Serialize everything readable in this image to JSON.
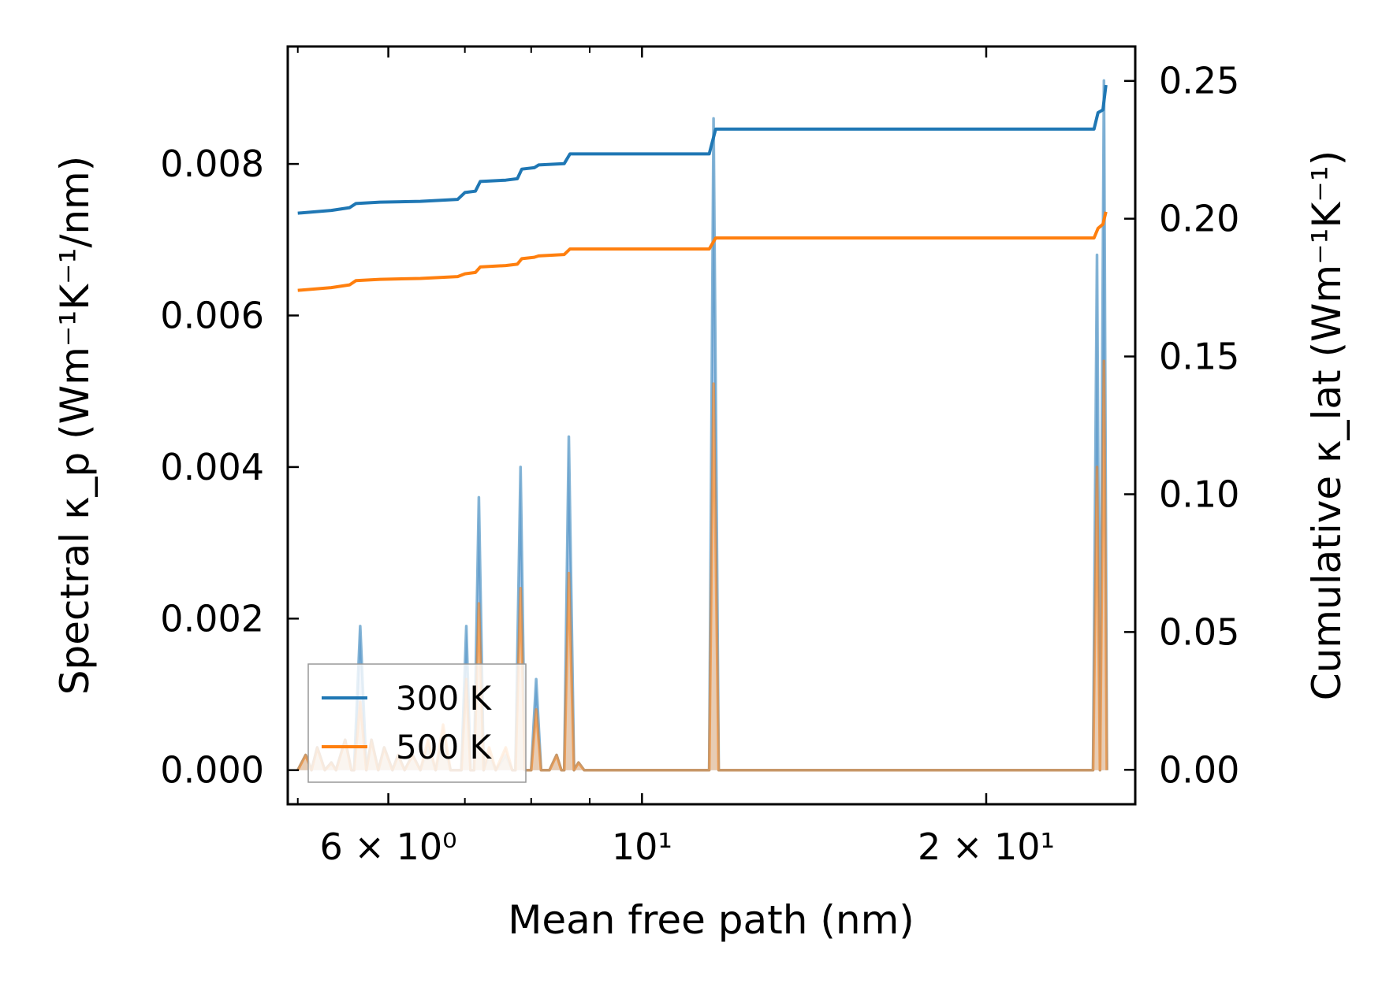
{
  "chart_data": {
    "type": "line",
    "xscale": "log",
    "xlabel": "Mean free path (nm)",
    "ylabel_left": "Spectral κ_p (Wm⁻¹K⁻¹/nm)",
    "ylabel_right": "Cumulative κ_lat (Wm⁻¹K⁻¹)",
    "xlim": [
      4.9,
      27.0
    ],
    "ylim_left": [
      -0.00045,
      0.00955
    ],
    "ylim_right": [
      -0.0125,
      0.2625
    ],
    "xticks": [
      {
        "value": 6,
        "label": "6 × 10⁰"
      },
      {
        "value": 10,
        "label": "10¹"
      },
      {
        "value": 20,
        "label": "2 × 10¹"
      }
    ],
    "xminor": [
      5,
      7,
      8,
      9,
      30
    ],
    "yticks_left": [
      {
        "value": 0.0,
        "label": "0.000"
      },
      {
        "value": 0.002,
        "label": "0.002"
      },
      {
        "value": 0.004,
        "label": "0.004"
      },
      {
        "value": 0.006,
        "label": "0.006"
      },
      {
        "value": 0.008,
        "label": "0.008"
      }
    ],
    "yticks_right": [
      {
        "value": 0.0,
        "label": "0.00"
      },
      {
        "value": 0.05,
        "label": "0.05"
      },
      {
        "value": 0.1,
        "label": "0.10"
      },
      {
        "value": 0.15,
        "label": "0.15"
      },
      {
        "value": 0.2,
        "label": "0.20"
      },
      {
        "value": 0.25,
        "label": "0.25"
      }
    ],
    "legend": {
      "position": "lower-left",
      "entries": [
        "300 K",
        "500 K"
      ]
    },
    "series": [
      {
        "name": "300 K",
        "color": "#1f77b4",
        "fill_color": "#aec7e8",
        "spectral": [
          [
            5.0,
            0.0
          ],
          [
            5.08,
            0.0002
          ],
          [
            5.14,
            0.0
          ],
          [
            5.2,
            0.0003
          ],
          [
            5.28,
            0.0
          ],
          [
            5.35,
            0.0001
          ],
          [
            5.4,
            0.0
          ],
          [
            5.5,
            0.0004
          ],
          [
            5.57,
            0.0
          ],
          [
            5.6,
            0.0
          ],
          [
            5.67,
            0.0019
          ],
          [
            5.74,
            0.0
          ],
          [
            5.8,
            0.0004
          ],
          [
            5.88,
            0.0
          ],
          [
            5.95,
            0.0003
          ],
          [
            6.05,
            0.0
          ],
          [
            6.12,
            0.0002
          ],
          [
            6.2,
            0.0
          ],
          [
            6.3,
            0.0002
          ],
          [
            6.4,
            0.0
          ],
          [
            6.5,
            0.0003
          ],
          [
            6.6,
            0.0
          ],
          [
            6.7,
            0.0004
          ],
          [
            6.8,
            0.0
          ],
          [
            6.95,
            0.0
          ],
          [
            7.02,
            0.0019
          ],
          [
            7.08,
            0.0
          ],
          [
            7.13,
            0.0
          ],
          [
            7.2,
            0.0036
          ],
          [
            7.27,
            0.0
          ],
          [
            7.35,
            0.0002
          ],
          [
            7.45,
            0.0
          ],
          [
            7.6,
            0.0002
          ],
          [
            7.7,
            0.0
          ],
          [
            7.75,
            0.0
          ],
          [
            7.83,
            0.004
          ],
          [
            7.9,
            0.0
          ],
          [
            8.0,
            0.0
          ],
          [
            8.08,
            0.0012
          ],
          [
            8.16,
            0.0
          ],
          [
            8.3,
            0.0
          ],
          [
            8.42,
            0.0002
          ],
          [
            8.5,
            0.0
          ],
          [
            8.55,
            0.0
          ],
          [
            8.63,
            0.0044
          ],
          [
            8.72,
            0.0
          ],
          [
            8.8,
            0.0001
          ],
          [
            8.9,
            0.0
          ],
          [
            11.45,
            0.0
          ],
          [
            11.55,
            0.0086
          ],
          [
            11.67,
            0.0
          ],
          [
            24.8,
            0.0
          ],
          [
            25.0,
            0.0068
          ],
          [
            25.15,
            0.0
          ],
          [
            25.35,
            0.0091
          ],
          [
            25.5,
            0.0
          ]
        ],
        "cumulative": [
          [
            5.0,
            0.202
          ],
          [
            5.35,
            0.203
          ],
          [
            5.55,
            0.204
          ],
          [
            5.62,
            0.2055
          ],
          [
            5.9,
            0.206
          ],
          [
            6.4,
            0.2063
          ],
          [
            6.9,
            0.207
          ],
          [
            7.0,
            0.2095
          ],
          [
            7.15,
            0.21
          ],
          [
            7.22,
            0.2135
          ],
          [
            7.6,
            0.214
          ],
          [
            7.78,
            0.2145
          ],
          [
            7.85,
            0.218
          ],
          [
            8.05,
            0.2185
          ],
          [
            8.12,
            0.2195
          ],
          [
            8.55,
            0.22
          ],
          [
            8.65,
            0.2235
          ],
          [
            11.45,
            0.2235
          ],
          [
            11.6,
            0.2325
          ],
          [
            24.85,
            0.2325
          ],
          [
            25.05,
            0.2385
          ],
          [
            25.3,
            0.2395
          ],
          [
            25.45,
            0.2485
          ]
        ]
      },
      {
        "name": "500 K",
        "color": "#ff7f0e",
        "fill_color": "#f7c89b",
        "spectral": [
          [
            5.0,
            0.0
          ],
          [
            5.08,
            0.0002
          ],
          [
            5.14,
            0.0
          ],
          [
            5.2,
            0.0003
          ],
          [
            5.28,
            0.0
          ],
          [
            5.35,
            0.0001
          ],
          [
            5.4,
            0.0
          ],
          [
            5.5,
            0.0004
          ],
          [
            5.57,
            0.0
          ],
          [
            5.6,
            0.0
          ],
          [
            5.67,
            0.0009
          ],
          [
            5.74,
            0.0
          ],
          [
            5.8,
            0.0004
          ],
          [
            5.88,
            0.0
          ],
          [
            5.95,
            0.0003
          ],
          [
            6.05,
            0.0
          ],
          [
            6.12,
            0.0002
          ],
          [
            6.2,
            0.0
          ],
          [
            6.3,
            0.0002
          ],
          [
            6.4,
            0.0
          ],
          [
            6.5,
            0.0004
          ],
          [
            6.6,
            0.0
          ],
          [
            6.7,
            0.0006
          ],
          [
            6.8,
            0.0
          ],
          [
            6.95,
            0.0
          ],
          [
            7.02,
            0.0012
          ],
          [
            7.08,
            0.0
          ],
          [
            7.13,
            0.0
          ],
          [
            7.2,
            0.0022
          ],
          [
            7.27,
            0.0
          ],
          [
            7.35,
            0.0003
          ],
          [
            7.45,
            0.0
          ],
          [
            7.6,
            0.0003
          ],
          [
            7.7,
            0.0
          ],
          [
            7.75,
            0.0
          ],
          [
            7.83,
            0.0024
          ],
          [
            7.9,
            0.0
          ],
          [
            8.0,
            0.0
          ],
          [
            8.08,
            0.0008
          ],
          [
            8.16,
            0.0
          ],
          [
            8.3,
            0.0
          ],
          [
            8.42,
            0.0002
          ],
          [
            8.5,
            0.0
          ],
          [
            8.55,
            0.0
          ],
          [
            8.63,
            0.0026
          ],
          [
            8.72,
            0.0
          ],
          [
            8.8,
            0.0001
          ],
          [
            8.9,
            0.0
          ],
          [
            11.45,
            0.0
          ],
          [
            11.55,
            0.0051
          ],
          [
            11.67,
            0.0
          ],
          [
            24.8,
            0.0
          ],
          [
            25.0,
            0.004
          ],
          [
            25.15,
            0.0
          ],
          [
            25.35,
            0.0054
          ],
          [
            25.5,
            0.0
          ]
        ],
        "cumulative": [
          [
            5.0,
            0.174
          ],
          [
            5.35,
            0.175
          ],
          [
            5.55,
            0.176
          ],
          [
            5.62,
            0.1775
          ],
          [
            5.9,
            0.178
          ],
          [
            6.4,
            0.1783
          ],
          [
            6.9,
            0.179
          ],
          [
            7.0,
            0.18
          ],
          [
            7.15,
            0.1805
          ],
          [
            7.22,
            0.1825
          ],
          [
            7.6,
            0.183
          ],
          [
            7.78,
            0.1835
          ],
          [
            7.85,
            0.1855
          ],
          [
            8.05,
            0.186
          ],
          [
            8.12,
            0.1865
          ],
          [
            8.55,
            0.187
          ],
          [
            8.65,
            0.189
          ],
          [
            11.45,
            0.189
          ],
          [
            11.6,
            0.193
          ],
          [
            24.85,
            0.193
          ],
          [
            25.05,
            0.1965
          ],
          [
            25.3,
            0.198
          ],
          [
            25.45,
            0.2025
          ]
        ]
      }
    ]
  }
}
